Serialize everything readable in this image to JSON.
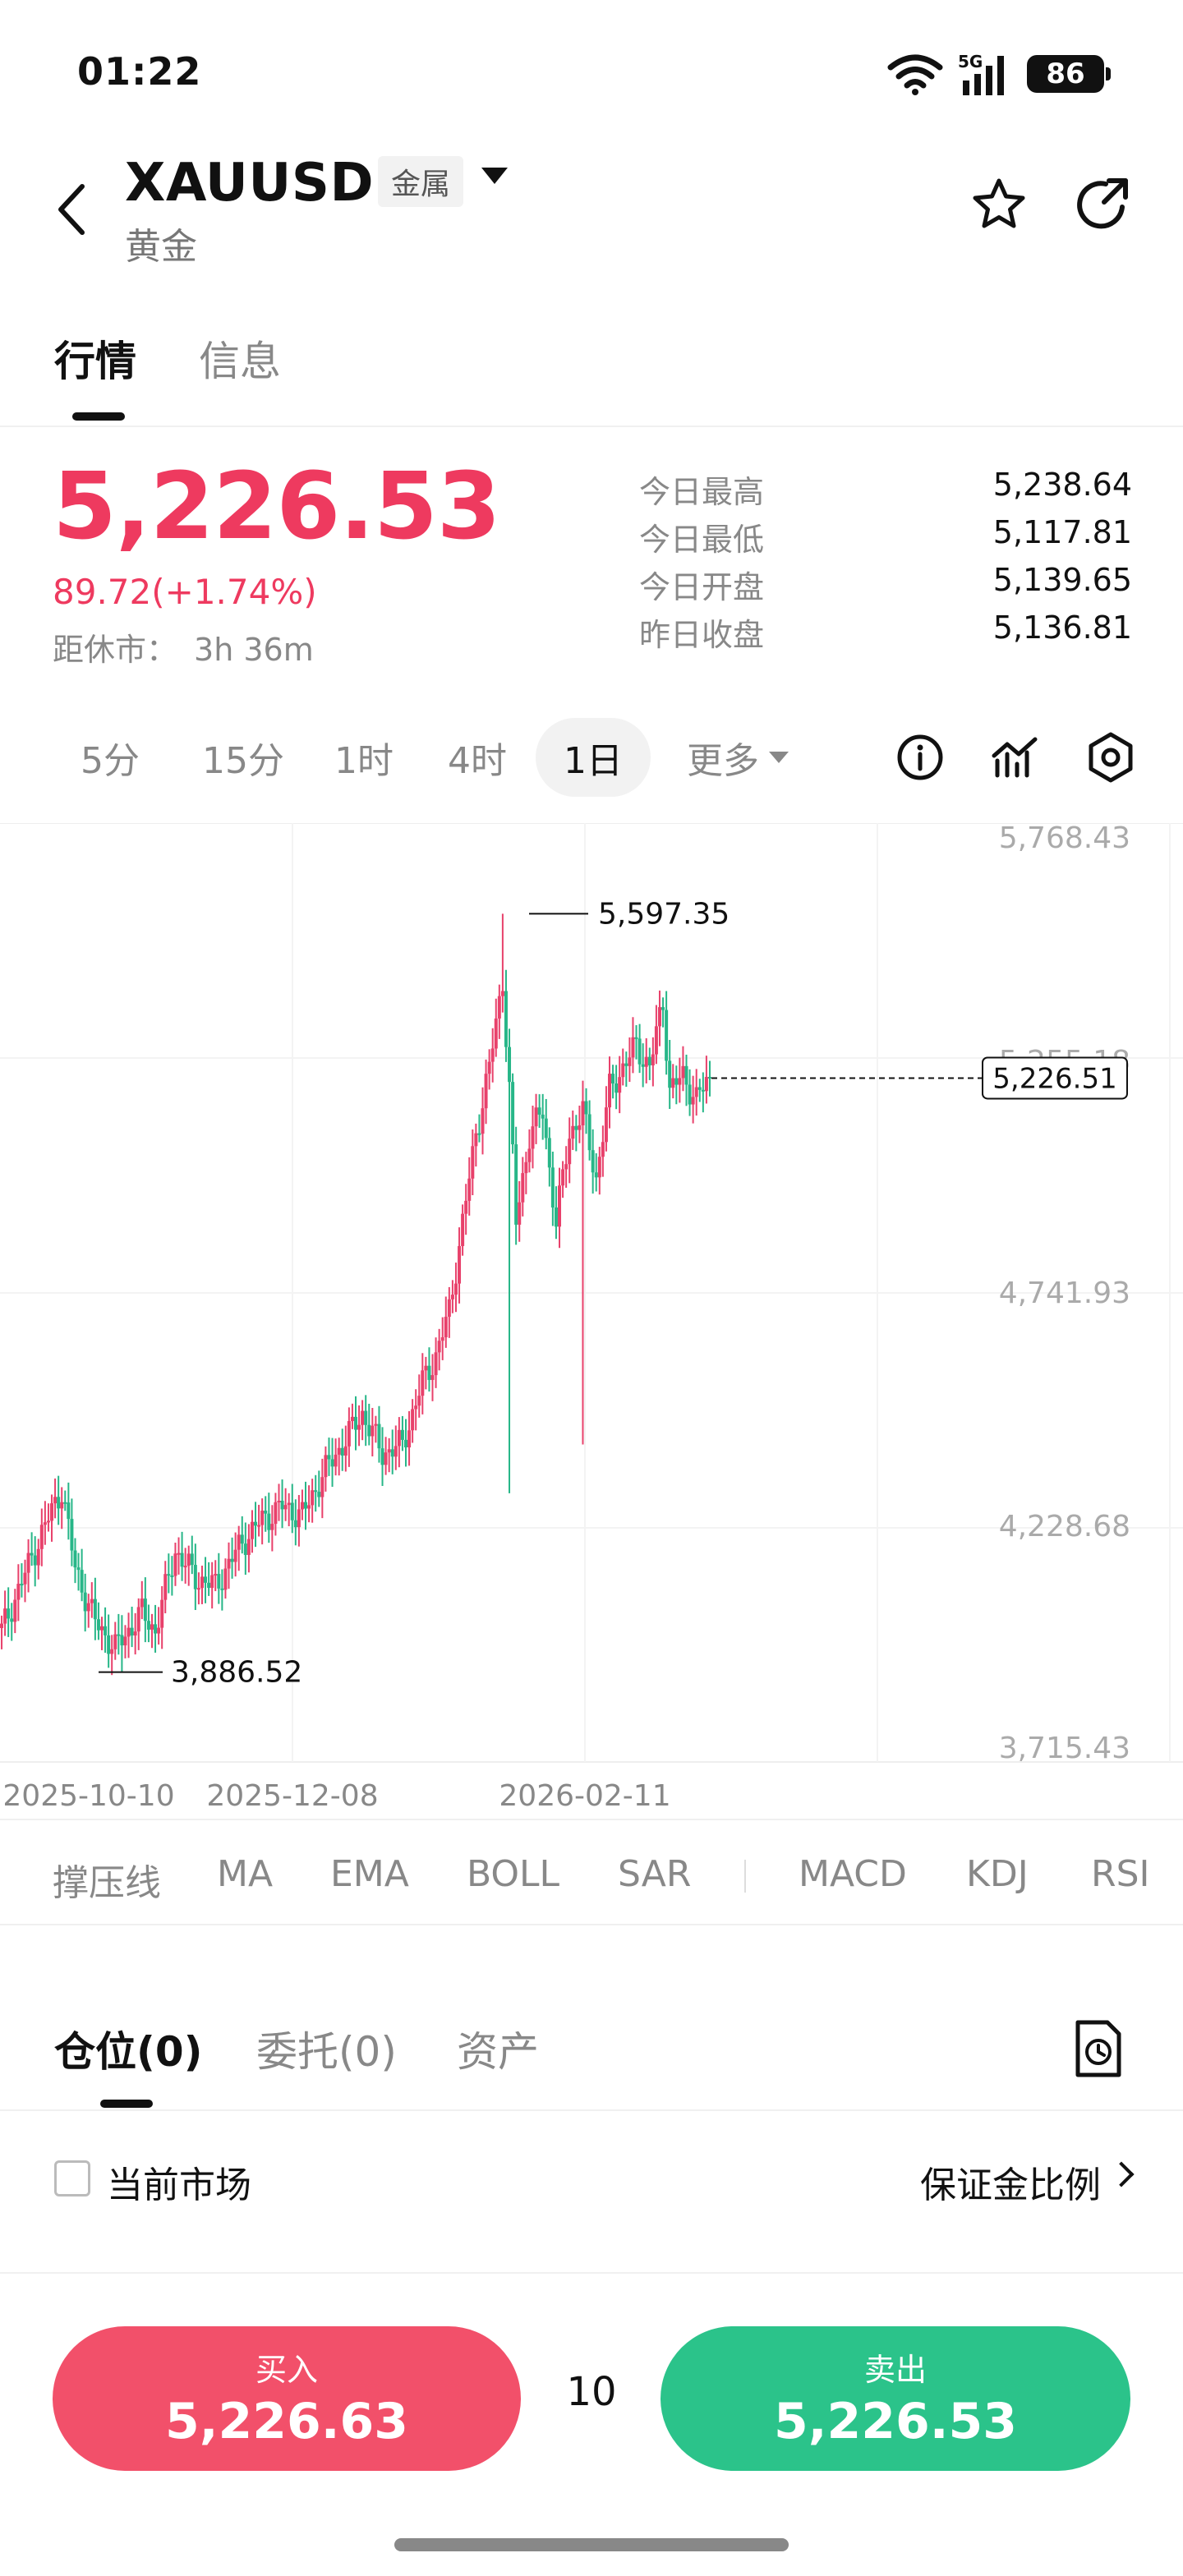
{
  "status_bar": {
    "time": "01:22",
    "network": "5G",
    "battery": "86"
  },
  "header": {
    "symbol": "XAUUSD",
    "category": "金属",
    "name": "黄金"
  },
  "main_tabs": [
    {
      "label": "行情"
    },
    {
      "label": "信息"
    }
  ],
  "quote": {
    "price": "5,226.53",
    "change": "89.72(+1.74%)",
    "close_label": "距休市：",
    "close_time": "3h 36m",
    "stats": [
      {
        "label": "今日最高",
        "value": "5,238.64"
      },
      {
        "label": "今日最低",
        "value": "5,117.81"
      },
      {
        "label": "今日开盘",
        "value": "5,139.65"
      },
      {
        "label": "昨日收盘",
        "value": "5,136.81"
      }
    ]
  },
  "periods": [
    {
      "label": "5分"
    },
    {
      "label": "15分"
    },
    {
      "label": "1时"
    },
    {
      "label": "4时"
    },
    {
      "label": "1日"
    },
    {
      "label": "更多"
    }
  ],
  "active_period": "1日",
  "chart_data": {
    "type": "candlestick",
    "y_ticks": [
      "5,768.43",
      "5,255.18",
      "4,741.93",
      "4,228.68",
      "3,715.43"
    ],
    "ylim": [
      3715.43,
      5768.43
    ],
    "x_ticks": [
      "2025-10-10",
      "2025-12-08",
      "2026-02-11"
    ],
    "high_marker": "5,597.35",
    "low_marker": "3,886.52",
    "last_price_label": "5,226.51",
    "last_price": 5226.51,
    "up_color": "#e8416b",
    "down_color": "#27b688"
  },
  "indicators": [
    {
      "label": "撑压线"
    },
    {
      "label": "MA"
    },
    {
      "label": "EMA"
    },
    {
      "label": "BOLL"
    },
    {
      "label": "SAR"
    },
    {
      "label": "MACD"
    },
    {
      "label": "KDJ"
    },
    {
      "label": "RSI"
    }
  ],
  "position_tabs": [
    {
      "label": "仓位(0)"
    },
    {
      "label": "委托(0)"
    },
    {
      "label": "资产"
    }
  ],
  "market_filter": {
    "label": "当前市场",
    "margin_link": "保证金比例"
  },
  "trade": {
    "buy_label": "买入",
    "buy_price": "5,226.63",
    "quantity": "10",
    "sell_label": "卖出",
    "sell_price": "5,226.53"
  }
}
